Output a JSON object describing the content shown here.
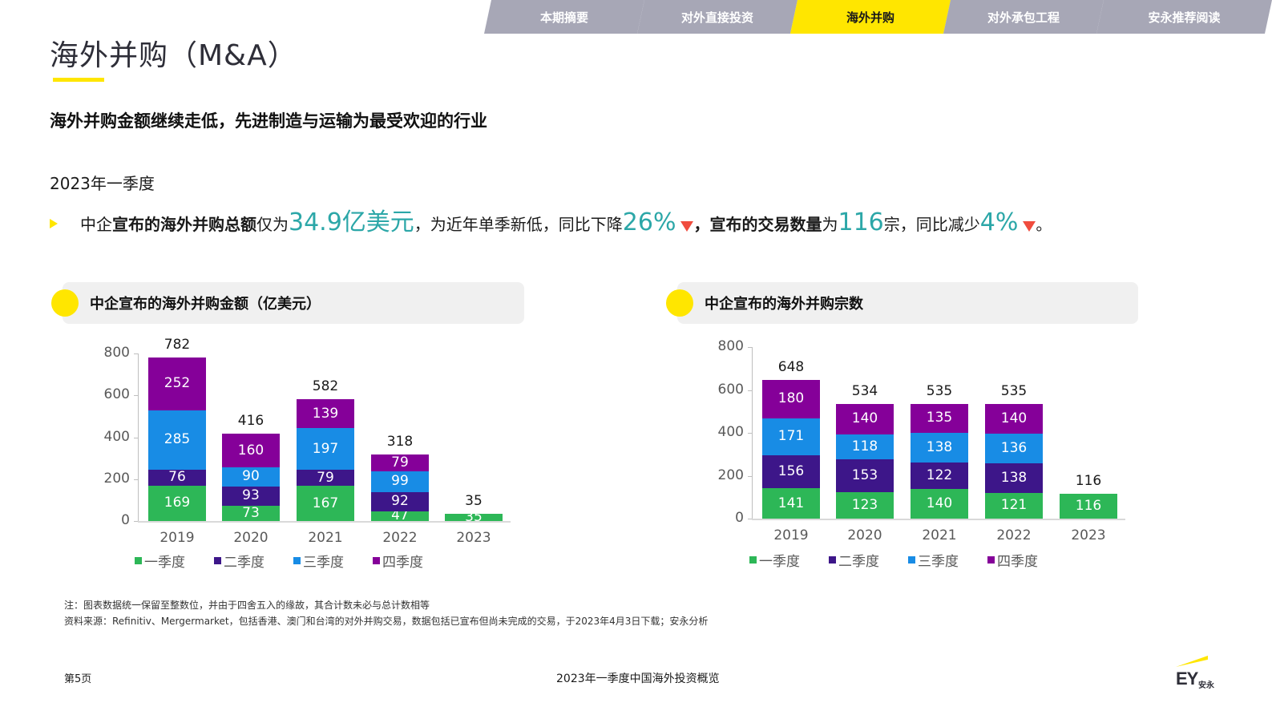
{
  "nav": {
    "tabs": [
      {
        "label": "本期摘要",
        "active": false
      },
      {
        "label": "对外直接投资",
        "active": false
      },
      {
        "label": "海外并购",
        "active": true
      },
      {
        "label": "对外承包工程",
        "active": false
      },
      {
        "label": "安永推荐阅读",
        "active": false
      }
    ]
  },
  "header": {
    "title": "海外并购（M&A）",
    "subtitle": "海外并购金额继续走低，先进制造与运输为最受欢迎的行业"
  },
  "summary": {
    "period": "2023年一季度",
    "bullet": {
      "p1": "中企",
      "p2_bold": "宣布的海外并购总额",
      "p3": "仅为",
      "amount": "34.9亿美元",
      "p4": "，为近年单季新低，同比下降",
      "amount_change": "26%",
      "p5": " ，",
      "p6_bold": "宣布的交易数量",
      "p7": "为",
      "count": "116",
      "p8": "宗，同比减少",
      "count_change": "4%",
      "p9": "。"
    }
  },
  "colors": {
    "accent_yellow": "#ffe600",
    "highlight_teal": "#2ca7a8",
    "down_red": "#f04c3e",
    "q1": "#2db757",
    "q2": "#3d1689",
    "q3": "#188ce5",
    "q4": "#850099"
  },
  "charts": {
    "left": {
      "title": "中企宣布的海外并购金额（亿美元）"
    },
    "right": {
      "title": "中企宣布的海外并购宗数"
    }
  },
  "chart_data": [
    {
      "type": "bar",
      "stacked": true,
      "title": "中企宣布的海外并购金额（亿美元）",
      "xlabel": "",
      "ylabel": "",
      "ylim": [
        0,
        800
      ],
      "yticks": [
        0,
        200,
        400,
        600,
        800
      ],
      "grid": false,
      "legend_position": "bottom",
      "categories": [
        "2019",
        "2020",
        "2021",
        "2022",
        "2023"
      ],
      "series": [
        {
          "name": "一季度",
          "values": [
            169,
            73,
            167,
            47,
            35
          ]
        },
        {
          "name": "二季度",
          "values": [
            76,
            93,
            79,
            92,
            null
          ]
        },
        {
          "name": "三季度",
          "values": [
            285,
            90,
            197,
            99,
            null
          ]
        },
        {
          "name": "四季度",
          "values": [
            252,
            160,
            139,
            79,
            null
          ]
        }
      ],
      "totals": [
        782,
        416,
        582,
        318,
        35
      ]
    },
    {
      "type": "bar",
      "stacked": true,
      "title": "中企宣布的海外并购宗数",
      "xlabel": "",
      "ylabel": "",
      "ylim": [
        0,
        800
      ],
      "yticks": [
        0,
        200,
        400,
        600,
        800
      ],
      "grid": false,
      "legend_position": "bottom",
      "categories": [
        "2019",
        "2020",
        "2021",
        "2022",
        "2023"
      ],
      "series": [
        {
          "name": "一季度",
          "values": [
            141,
            123,
            140,
            121,
            116
          ]
        },
        {
          "name": "二季度",
          "values": [
            156,
            153,
            122,
            138,
            null
          ]
        },
        {
          "name": "三季度",
          "values": [
            171,
            118,
            138,
            136,
            null
          ]
        },
        {
          "name": "四季度",
          "values": [
            180,
            140,
            135,
            140,
            null
          ]
        }
      ],
      "totals": [
        648,
        534,
        535,
        535,
        116
      ]
    }
  ],
  "notes": {
    "note": "注：图表数据统一保留至整数位，并由于四舍五入的缘故，其合计数未必与总计数相等",
    "source": "资料来源：Refinitiv、Mergermarket，包括香港、澳门和台湾的对外并购交易，数据包括已宣布但尚未完成的交易，于2023年4月3日下载；安永分析"
  },
  "footer": {
    "page": "第5页",
    "doc_title": "2023年一季度中国海外投资概览",
    "logo_text": "EY",
    "logo_cn": "安永"
  }
}
